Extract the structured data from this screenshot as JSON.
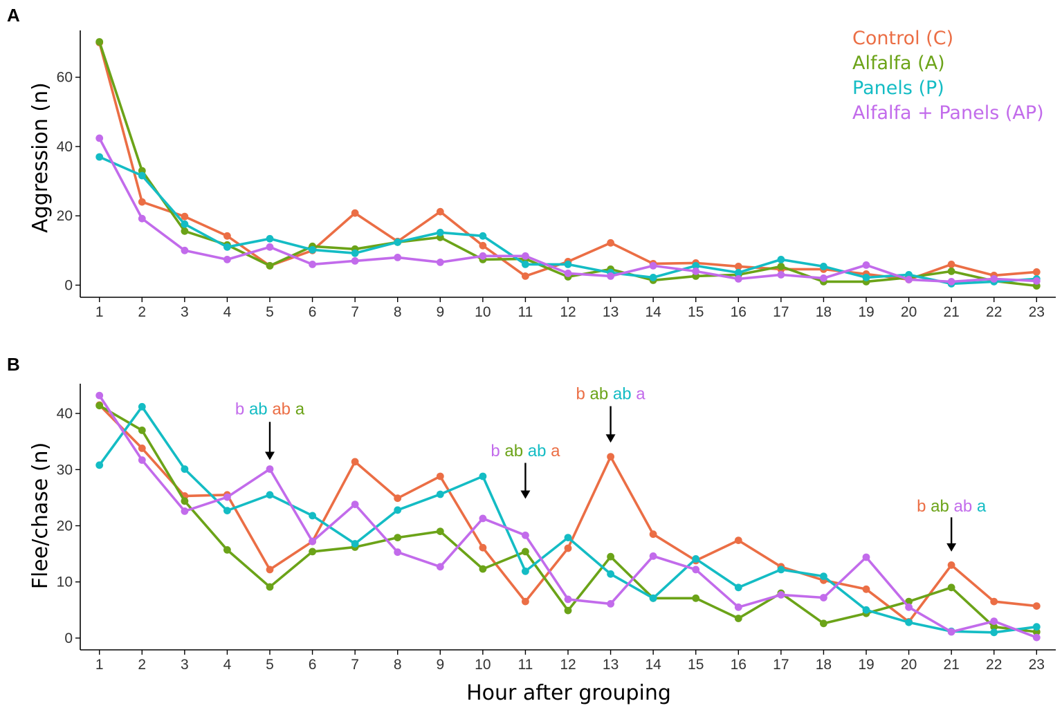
{
  "figure": {
    "xlabel": "Hour after grouping",
    "colors": {
      "C": "#EB6E45",
      "A": "#6BA318",
      "P": "#14BCC4",
      "AP": "#C26BEB"
    },
    "legend": [
      {
        "key": "C",
        "label": "Control (C)"
      },
      {
        "key": "A",
        "label": "Alfalfa (A)"
      },
      {
        "key": "P",
        "label": "Panels (P)"
      },
      {
        "key": "AP",
        "label": "Alfalfa + Panels (AP)"
      }
    ]
  },
  "chart_data": [
    {
      "panel": "A",
      "type": "line",
      "title": "",
      "xlabel": "",
      "ylabel": "Aggression (n)",
      "x": [
        1,
        2,
        3,
        4,
        5,
        6,
        7,
        8,
        9,
        10,
        11,
        12,
        13,
        14,
        15,
        16,
        17,
        18,
        19,
        20,
        21,
        22,
        23
      ],
      "xticks": [
        "1",
        "2",
        "3",
        "4",
        "5",
        "6",
        "7",
        "8",
        "9",
        "10",
        "11",
        "12",
        "13",
        "14",
        "15",
        "16",
        "17",
        "18",
        "19",
        "20",
        "21",
        "22",
        "23"
      ],
      "xlim": [
        0.55,
        23.45
      ],
      "ylim": [
        -3.5,
        73.5
      ],
      "yticks": [
        "0",
        "20",
        "40",
        "60"
      ],
      "legend_position": "top-right",
      "series": [
        {
          "key": "C",
          "name": "Control (C)",
          "values": [
            70,
            24,
            19.8,
            14.2,
            5.6,
            10,
            20.8,
            12.6,
            21.2,
            11.4,
            2.6,
            6.8,
            12.2,
            6.2,
            6.4,
            5.4,
            4.6,
            4.6,
            3.2,
            1.6,
            6,
            2.8,
            3.8
          ]
        },
        {
          "key": "A",
          "name": "Alfalfa (A)",
          "values": [
            70.2,
            33,
            15.6,
            11.6,
            5.6,
            11.2,
            10.4,
            12.4,
            13.8,
            7.4,
            7.6,
            2.4,
            4.6,
            1.4,
            2.6,
            3,
            5.4,
            1,
            1,
            2.2,
            4,
            1.2,
            -0.2
          ]
        },
        {
          "key": "P",
          "name": "Panels (P)",
          "values": [
            37,
            31.6,
            17.6,
            11,
            13.4,
            10.2,
            9.2,
            12.4,
            15.2,
            14.2,
            6,
            6,
            3.6,
            2.2,
            5.6,
            3.6,
            7.4,
            5.4,
            2.2,
            3,
            0.4,
            1,
            1.8
          ]
        },
        {
          "key": "AP",
          "name": "Alfalfa + Panels (AP)",
          "values": [
            42.4,
            19.2,
            10,
            7.4,
            11,
            6,
            7,
            8,
            6.6,
            8.4,
            8.4,
            3.4,
            2.6,
            5.6,
            4,
            1.8,
            3,
            2,
            5.8,
            1.6,
            1,
            1.8,
            1.2
          ]
        }
      ],
      "annotations": []
    },
    {
      "panel": "B",
      "type": "line",
      "title": "",
      "xlabel": "Hour after grouping",
      "ylabel": "Flee/chase (n)",
      "x": [
        1,
        2,
        3,
        4,
        5,
        6,
        7,
        8,
        9,
        10,
        11,
        12,
        13,
        14,
        15,
        16,
        17,
        18,
        19,
        20,
        21,
        22,
        23
      ],
      "xticks": [
        "1",
        "2",
        "3",
        "4",
        "5",
        "6",
        "7",
        "8",
        "9",
        "10",
        "11",
        "12",
        "13",
        "14",
        "15",
        "16",
        "17",
        "18",
        "19",
        "20",
        "21",
        "22",
        "23"
      ],
      "xlim": [
        0.55,
        23.45
      ],
      "ylim": [
        -2.1,
        45.3
      ],
      "yticks": [
        "0",
        "10",
        "20",
        "30",
        "40"
      ],
      "series": [
        {
          "key": "C",
          "name": "Control (C)",
          "values": [
            41.5,
            33.8,
            25.3,
            25.5,
            12.2,
            17.2,
            31.4,
            24.9,
            28.8,
            16.1,
            6.5,
            16,
            32.3,
            18.5,
            13.8,
            17.4,
            12.7,
            10.3,
            8.7,
            2.9,
            13,
            6.5,
            5.7
          ]
        },
        {
          "key": "A",
          "name": "Alfalfa (A)",
          "values": [
            41.4,
            37,
            24.4,
            15.7,
            9.1,
            15.4,
            16.2,
            17.9,
            19,
            12.3,
            15.4,
            4.9,
            14.5,
            7.1,
            7.1,
            3.5,
            8,
            2.6,
            4.4,
            6.5,
            9,
            2,
            1.1
          ]
        },
        {
          "key": "P",
          "name": "Panels (P)",
          "values": [
            30.8,
            41.2,
            30.1,
            22.7,
            25.5,
            21.8,
            16.8,
            22.8,
            25.6,
            28.8,
            11.9,
            17.9,
            11.4,
            7.1,
            14.1,
            9,
            12.2,
            11,
            5,
            2.8,
            1.2,
            1,
            2
          ]
        },
        {
          "key": "AP",
          "name": "Alfalfa + Panels (AP)",
          "values": [
            43.2,
            31.7,
            22.6,
            25.1,
            30.1,
            17.2,
            23.8,
            15.3,
            12.7,
            21.3,
            18.3,
            6.9,
            6.1,
            14.6,
            12.2,
            5.5,
            7.7,
            7.2,
            14.4,
            5.5,
            1.1,
            3,
            0.1
          ]
        }
      ],
      "annotations": [
        {
          "x": 5,
          "arrow_y_top": 38.5,
          "arrow_y_tip": 31.7,
          "label_y": 39.8,
          "parts": [
            {
              "text": "b",
              "key": "AP"
            },
            {
              "text": "ab",
              "key": "P"
            },
            {
              "text": "ab",
              "key": "C"
            },
            {
              "text": "a",
              "key": "A"
            }
          ]
        },
        {
          "x": 11,
          "arrow_y_top": 31.2,
          "arrow_y_tip": 24.8,
          "label_y": 32.4,
          "parts": [
            {
              "text": "b",
              "key": "AP"
            },
            {
              "text": "ab",
              "key": "A"
            },
            {
              "text": "ab",
              "key": "P"
            },
            {
              "text": "a",
              "key": "C"
            }
          ]
        },
        {
          "x": 13,
          "arrow_y_top": 41.3,
          "arrow_y_tip": 34.8,
          "label_y": 42.5,
          "parts": [
            {
              "text": "b",
              "key": "C"
            },
            {
              "text": "ab",
              "key": "A"
            },
            {
              "text": "ab",
              "key": "P"
            },
            {
              "text": "a",
              "key": "AP"
            }
          ]
        },
        {
          "x": 21,
          "arrow_y_top": 21.5,
          "arrow_y_tip": 15.4,
          "label_y": 22.5,
          "parts": [
            {
              "text": "b",
              "key": "C"
            },
            {
              "text": "ab",
              "key": "A"
            },
            {
              "text": "ab",
              "key": "AP"
            },
            {
              "text": "a",
              "key": "P"
            }
          ]
        }
      ]
    }
  ]
}
